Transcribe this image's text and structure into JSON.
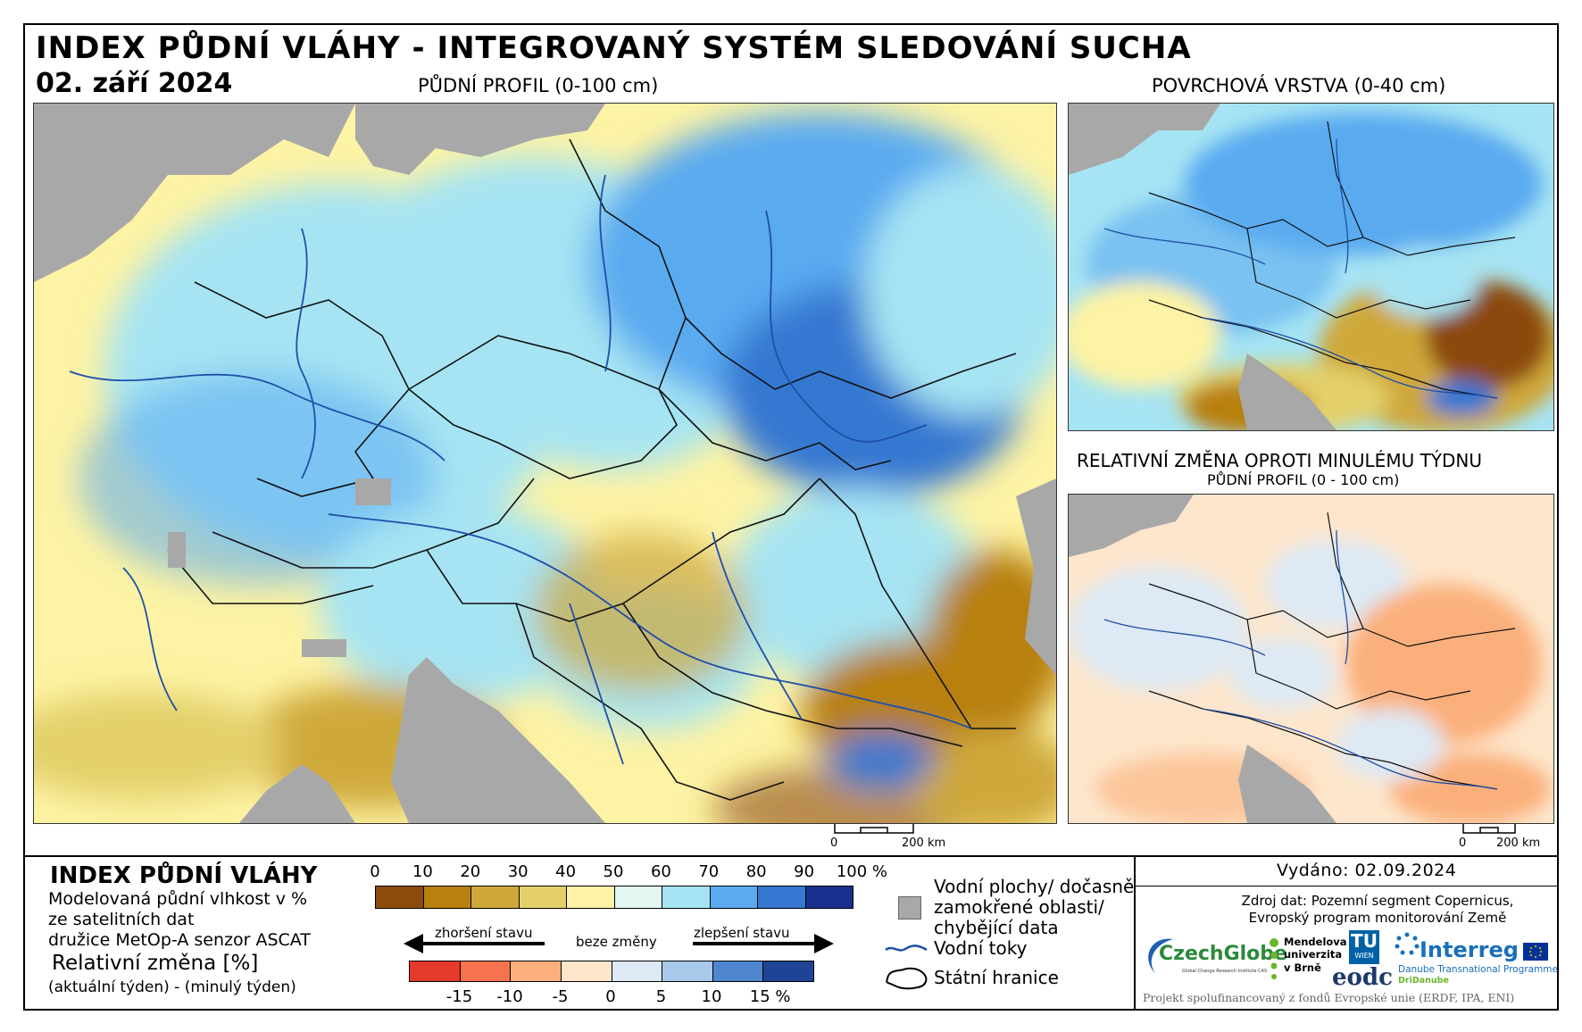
{
  "header": {
    "title": "INDEX PŮDNÍ VLÁHY - INTEGROVANÝ SYSTÉM SLEDOVÁNÍ SUCHA",
    "date": "02. září 2024"
  },
  "maps": {
    "main": {
      "title": "PŮDNÍ PROFIL (0-100 cm)",
      "scale_zero": "0",
      "scale_label": "200 km"
    },
    "surface": {
      "title": "POVRCHOVÁ VRSTVA (0-40 cm)"
    },
    "change": {
      "title": "RELATIVNÍ ZMĚNA OPROTI MINULÉMU TÝDNU",
      "subtitle": "PŮDNÍ PROFIL (0 - 100 cm)",
      "scale_zero": "0",
      "scale_label": "200 km"
    }
  },
  "legend": {
    "title": "INDEX PŮDNÍ VLÁHY",
    "desc_lines": [
      "Modelovaná půdní vlhkost v %",
      "ze satelitních dat",
      "družice MetOp-A senzor ASCAT"
    ],
    "rel_title": "Relativní změna [%]",
    "rel_sub": "(aktuální týden) - (minulý týden)",
    "index_ticks": [
      "0",
      "10",
      "20",
      "30",
      "40",
      "50",
      "60",
      "70",
      "80",
      "90",
      "100 %"
    ],
    "index_colors": [
      "#8c4a0c",
      "#b8800f",
      "#cfa83a",
      "#e3d06a",
      "#fdf3a4",
      "#e2f6f2",
      "#a6e4f3",
      "#5aaaf0",
      "#3478d2",
      "#1a3090"
    ],
    "change_ticks": [
      "-15",
      "-10",
      "-5",
      "0",
      "5",
      "10",
      "15 %"
    ],
    "change_colors": [
      "#e43a2c",
      "#f6734e",
      "#fbb07b",
      "#fde6cc",
      "#dde9f4",
      "#a9c9ea",
      "#4e86cf",
      "#1f4496"
    ],
    "arrow_worse": "zhoršení stavu",
    "arrow_same": "beze změny",
    "arrow_better": "zlepšení stavu"
  },
  "key": {
    "water_label": "Vodní plochy/ dočasně zamokřené oblasti/ chybějící data",
    "water_line1": "Vodní plochy/ dočasně",
    "water_line2": "zamokřené oblasti/",
    "water_line3": "chybějící data",
    "rivers": "Vodní toky",
    "borders": "Státní hranice",
    "water_color": "#a8a8a8",
    "river_color": "#1f4fa8"
  },
  "info": {
    "issued": "Vydáno: 02.09.2024",
    "source_line1": "Zdroj dat: Pozemní segment Copernicus,",
    "source_line2": "Evropský program monitorování Země",
    "logos": {
      "czechglobe": "CzechGlobe",
      "czechglobe_sub": "Global Change Research Institute CAS",
      "mendel_1": "Mendelova",
      "mendel_2": "univerzita",
      "mendel_3": "v Brně",
      "tu": "TU",
      "tu_sub": "WIEN",
      "eodc": "eodc",
      "interreg": "Interreg",
      "interreg_sub1": "Danube Transnational Programme",
      "interreg_sub2": "DriDanube"
    },
    "footer": "Projekt spolufinancovaný z fondů Evropské unie (ERDF, IPA, ENI)"
  }
}
